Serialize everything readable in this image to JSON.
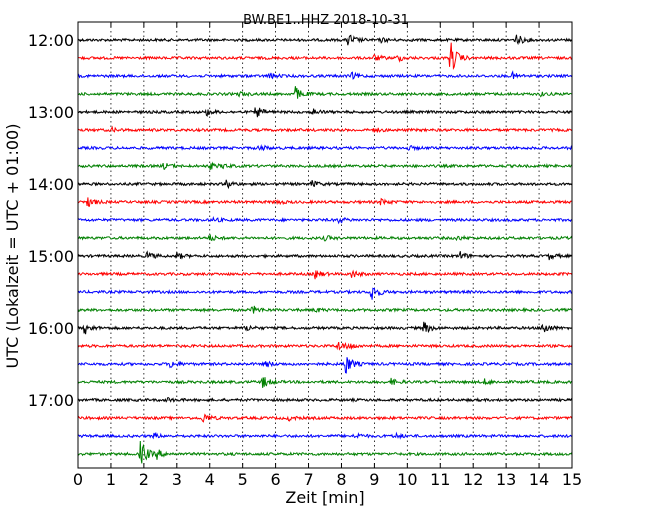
{
  "chart_data": {
    "type": "line",
    "title": "BW.BE1..HHZ 2018-10-31",
    "xlabel": "Zeit  [min]",
    "ylabel": "UTC (Lokalzeit = UTC + 01:00)",
    "xlim": [
      0,
      15
    ],
    "x_ticks": [
      "0",
      "1",
      "2",
      "3",
      "4",
      "5",
      "6",
      "7",
      "8",
      "9",
      "10",
      "11",
      "12",
      "13",
      "14",
      "15"
    ],
    "y_ticks": [
      {
        "label": "12:00",
        "row": 0
      },
      {
        "label": "13:00",
        "row": 4
      },
      {
        "label": "14:00",
        "row": 8
      },
      {
        "label": "15:00",
        "row": 12
      },
      {
        "label": "16:00",
        "row": 16
      },
      {
        "label": "17:00",
        "row": 20
      }
    ],
    "grid": true,
    "colors": [
      "#000000",
      "#ff0000",
      "#0000ff",
      "#008000"
    ],
    "traces": [
      {
        "row": 0,
        "start": "12:00",
        "events": [
          [
            8.2,
            7
          ],
          [
            13.3,
            6
          ],
          [
            9.2,
            2
          ]
        ]
      },
      {
        "row": 1,
        "start": "12:15",
        "events": [
          [
            11.3,
            18
          ],
          [
            9.0,
            3
          ],
          [
            9.7,
            3
          ]
        ]
      },
      {
        "row": 2,
        "start": "12:30",
        "events": [
          [
            5.8,
            3
          ],
          [
            8.3,
            3
          ],
          [
            13.2,
            3
          ]
        ]
      },
      {
        "row": 3,
        "start": "12:45",
        "events": [
          [
            6.6,
            7
          ],
          [
            4.9,
            2
          ],
          [
            14.0,
            2
          ]
        ]
      },
      {
        "row": 4,
        "start": "13:00",
        "events": [
          [
            5.4,
            6
          ],
          [
            3.9,
            3
          ],
          [
            7.1,
            4
          ]
        ]
      },
      {
        "row": 5,
        "start": "13:15",
        "events": [
          [
            1.0,
            2
          ],
          [
            9.0,
            2
          ]
        ]
      },
      {
        "row": 6,
        "start": "13:30",
        "events": [
          [
            5.5,
            3
          ],
          [
            10.0,
            2
          ]
        ]
      },
      {
        "row": 7,
        "start": "13:45",
        "events": [
          [
            2.6,
            3
          ],
          [
            4.0,
            3
          ],
          [
            4.4,
            2
          ]
        ]
      },
      {
        "row": 8,
        "start": "14:00",
        "events": [
          [
            4.5,
            4
          ],
          [
            7.1,
            3
          ]
        ]
      },
      {
        "row": 9,
        "start": "14:15",
        "events": [
          [
            0.3,
            5
          ],
          [
            6.0,
            2
          ],
          [
            9.2,
            3
          ]
        ]
      },
      {
        "row": 10,
        "start": "14:30",
        "events": [
          [
            7.9,
            3
          ],
          [
            4.1,
            2
          ]
        ]
      },
      {
        "row": 11,
        "start": "14:45",
        "events": [
          [
            4.0,
            3
          ],
          [
            7.5,
            2
          ],
          [
            11.5,
            2
          ]
        ]
      },
      {
        "row": 12,
        "start": "15:00",
        "events": [
          [
            2.1,
            4
          ],
          [
            3.0,
            3
          ],
          [
            11.6,
            4
          ],
          [
            14.3,
            3
          ]
        ]
      },
      {
        "row": 13,
        "start": "15:15",
        "events": [
          [
            7.2,
            4
          ],
          [
            8.3,
            4
          ]
        ]
      },
      {
        "row": 14,
        "start": "15:30",
        "events": [
          [
            8.9,
            10
          ]
        ]
      },
      {
        "row": 15,
        "start": "15:45",
        "events": [
          [
            5.3,
            4
          ],
          [
            7.2,
            2
          ]
        ]
      },
      {
        "row": 16,
        "start": "16:00",
        "events": [
          [
            0.2,
            6
          ],
          [
            5.1,
            3
          ],
          [
            10.5,
            6
          ],
          [
            14.1,
            7
          ]
        ]
      },
      {
        "row": 17,
        "start": "16:15",
        "events": [
          [
            7.9,
            5
          ],
          [
            8.2,
            3
          ]
        ]
      },
      {
        "row": 18,
        "start": "16:30",
        "events": [
          [
            8.1,
            12
          ],
          [
            2.8,
            4
          ],
          [
            5.7,
            3
          ]
        ]
      },
      {
        "row": 19,
        "start": "16:45",
        "events": [
          [
            5.6,
            6
          ],
          [
            9.5,
            3
          ],
          [
            12.3,
            3
          ]
        ]
      },
      {
        "row": 20,
        "start": "17:00",
        "events": [
          [
            2.7,
            2
          ]
        ]
      },
      {
        "row": 21,
        "start": "17:15",
        "events": [
          [
            3.8,
            5
          ],
          [
            6.4,
            2
          ]
        ]
      },
      {
        "row": 22,
        "start": "17:30",
        "events": [
          [
            8.4,
            3
          ],
          [
            9.6,
            3
          ],
          [
            2.3,
            2
          ]
        ]
      },
      {
        "row": 23,
        "start": "17:45",
        "events": [
          [
            1.9,
            14
          ],
          [
            2.4,
            4
          ]
        ]
      }
    ]
  }
}
